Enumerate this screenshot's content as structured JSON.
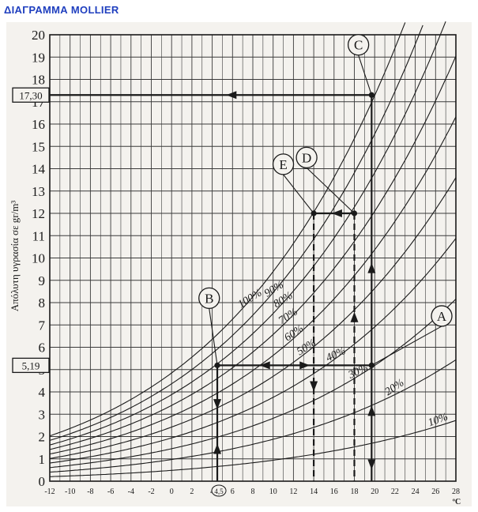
{
  "page_title": "ΔΙΑΓΡΑΜΜΑ MOLLIER",
  "colors": {
    "title": "#1f3fbf",
    "ink": "#1a1a1a",
    "paper": "#f4f2ee"
  },
  "chart_data": {
    "type": "line",
    "ylabel": "Απόλυτη υγρασία σε gr/m³",
    "xlabel": "ºC",
    "xlim": [
      -12,
      28
    ],
    "ylim": [
      0,
      20
    ],
    "x_ticks": [
      -12,
      -10,
      -8,
      -6,
      -4,
      -2,
      0,
      2,
      4,
      6,
      8,
      10,
      12,
      14,
      16,
      18,
      20,
      22,
      24,
      26,
      28
    ],
    "y_ticks": [
      0,
      1,
      2,
      3,
      4,
      5,
      6,
      7,
      8,
      9,
      10,
      11,
      12,
      13,
      14,
      15,
      16,
      17,
      18,
      19,
      20
    ],
    "grid": true,
    "series": [
      {
        "name": "100%",
        "rh": 1.0
      },
      {
        "name": "90%",
        "rh": 0.9
      },
      {
        "name": "80%",
        "rh": 0.8
      },
      {
        "name": "70%",
        "rh": 0.7
      },
      {
        "name": "60%",
        "rh": 0.6
      },
      {
        "name": "50%",
        "rh": 0.5
      },
      {
        "name": "40%",
        "rh": 0.4
      },
      {
        "name": "30%",
        "rh": 0.3
      },
      {
        "name": "20%",
        "rh": 0.2
      },
      {
        "name": "10%",
        "rh": 0.1
      }
    ],
    "points": [
      {
        "label": "A",
        "x": 19.7,
        "y": 5.19
      },
      {
        "label": "B",
        "x": 4.5,
        "y": 5.19
      },
      {
        "label": "C",
        "x": 19.7,
        "y": 17.3
      },
      {
        "label": "D",
        "x": 18,
        "y": 12
      },
      {
        "label": "E",
        "x": 14,
        "y": 12
      }
    ],
    "annotations": [
      {
        "text": "17,30",
        "y": 17.3
      },
      {
        "text": "5,19",
        "y": 5.19
      },
      {
        "text": "4,5",
        "x": 4.5
      }
    ]
  }
}
